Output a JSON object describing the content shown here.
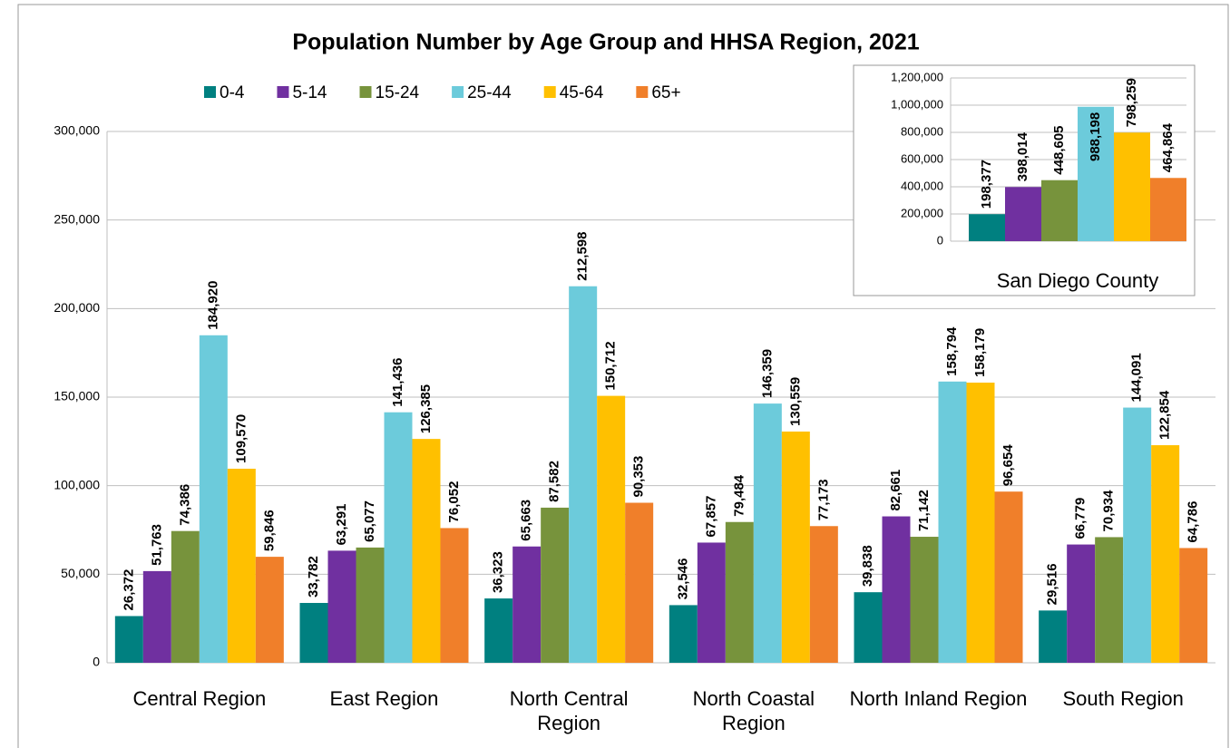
{
  "chart_data": [
    {
      "type": "bar",
      "title": "Population Number by Age Group and HHSA Region, 2021",
      "categories": [
        "Central Region",
        "East Region",
        "North Central Region",
        "North Coastal Region",
        "North Inland Region",
        "South Region"
      ],
      "series": [
        {
          "name": "0-4",
          "color": "#008080",
          "values": [
            26372,
            33782,
            36323,
            32546,
            39838,
            29516
          ],
          "value_labels": [
            "26,372",
            "33,782",
            "36,323",
            "32,546",
            "39,838",
            "29,516"
          ]
        },
        {
          "name": "5-14",
          "color": "#7030a0",
          "values": [
            51763,
            63291,
            65663,
            67857,
            82661,
            66779
          ],
          "value_labels": [
            "51,763",
            "63,291",
            "65,663",
            "67,857",
            "82,661",
            "66,779"
          ]
        },
        {
          "name": "15-24",
          "color": "#77933c",
          "values": [
            74386,
            65077,
            87582,
            79484,
            71142,
            70934
          ],
          "value_labels": [
            "74,386",
            "65,077",
            "87,582",
            "79,484",
            "71,142",
            "70,934"
          ]
        },
        {
          "name": "25-44",
          "color": "#6ccbdb",
          "values": [
            184920,
            141436,
            212598,
            146359,
            158794,
            144091
          ],
          "value_labels": [
            "184,920",
            "141,436",
            "212,598",
            "146,359",
            "158,794",
            "144,091"
          ]
        },
        {
          "name": "45-64",
          "color": "#ffc000",
          "values": [
            109570,
            126385,
            150712,
            130559,
            158179,
            122854
          ],
          "value_labels": [
            "109,570",
            "126,385",
            "150,712",
            "130,559",
            "158,179",
            "122,854"
          ]
        },
        {
          "name": "65+",
          "color": "#f07f2a",
          "values": [
            59846,
            76052,
            90353,
            77173,
            96654,
            64786
          ],
          "value_labels": [
            "59,846",
            "76,052",
            "90,353",
            "77,173",
            "96,654",
            "64,786"
          ]
        }
      ],
      "ylim": [
        0,
        300000
      ],
      "yticks": [
        0,
        {
          "value": 50000,
          "label": "50,000"
        },
        {
          "value": 100000,
          "label": "100,000"
        },
        {
          "value": 150000,
          "label": "150,000"
        },
        {
          "value": 200000,
          "label": "200,000"
        },
        {
          "value": 250000,
          "label": "250,000"
        },
        {
          "value": 300000,
          "label": "300,000"
        }
      ],
      "grid": true,
      "legend": "top"
    },
    {
      "type": "bar",
      "categories": [
        "San Diego County"
      ],
      "series": [
        {
          "color": "#008080",
          "values": [
            198377
          ],
          "value_labels": [
            "198,377"
          ]
        },
        {
          "color": "#7030a0",
          "values": [
            398014
          ],
          "value_labels": [
            "398,014"
          ]
        },
        {
          "color": "#77933c",
          "values": [
            448605
          ],
          "value_labels": [
            "448,605"
          ]
        },
        {
          "color": "#6ccbdb",
          "values": [
            988198
          ],
          "value_labels": [
            "988,198"
          ]
        },
        {
          "color": "#ffc000",
          "values": [
            798259
          ],
          "value_labels": [
            "798,259"
          ]
        },
        {
          "color": "#f07f2a",
          "values": [
            464864
          ],
          "value_labels": [
            "464,864"
          ]
        }
      ],
      "ylim": [
        0,
        1200000
      ],
      "yticks": [
        0,
        {
          "value": 200000,
          "label": "200,000"
        },
        {
          "value": 400000,
          "label": "400,000"
        },
        {
          "value": 600000,
          "label": "600,000"
        },
        {
          "value": 800000,
          "label": "800,000"
        },
        {
          "value": 1000000,
          "label": "1,000,000"
        },
        {
          "value": 1200000,
          "label": "1,200,000"
        }
      ],
      "grid": true
    }
  ]
}
